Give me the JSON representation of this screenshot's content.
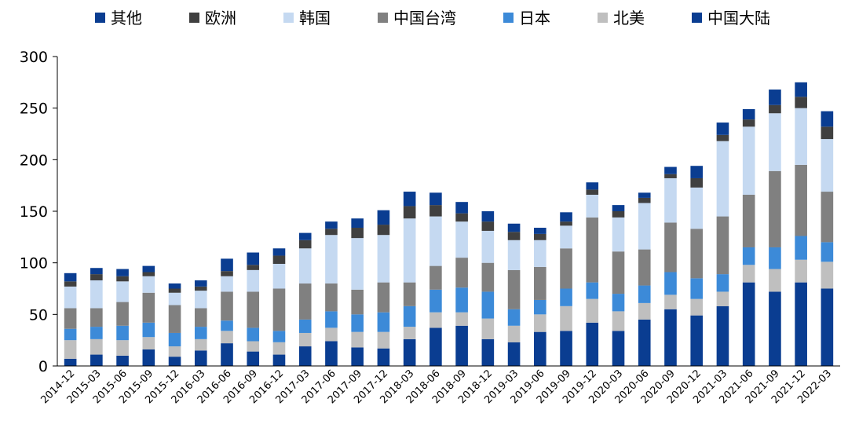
{
  "chart_data": {
    "type": "bar",
    "stacked": true,
    "title": "",
    "xlabel": "",
    "ylabel": "",
    "ylim": [
      0,
      300
    ],
    "yticks": [
      0,
      50,
      100,
      150,
      200,
      250,
      300
    ],
    "grid": false,
    "legend_position": "top",
    "legend_order": [
      "其他",
      "欧洲",
      "韩国",
      "中国台湾",
      "日本",
      "北美",
      "中国大陆"
    ],
    "categories": [
      "2014-12",
      "2015-03",
      "2015-06",
      "2015-09",
      "2015-12",
      "2016-03",
      "2016-06",
      "2016-09",
      "2016-12",
      "2017-03",
      "2017-06",
      "2017-09",
      "2017-12",
      "2018-03",
      "2018-06",
      "2018-09",
      "2018-12",
      "2019-03",
      "2019-06",
      "2019-09",
      "2019-12",
      "2020-03",
      "2020-06",
      "2020-09",
      "2020-12",
      "2021-03",
      "2021-06",
      "2021-09",
      "2021-12",
      "2022-03"
    ],
    "series": [
      {
        "name": "中国大陆",
        "color": "#0a3d91",
        "values": [
          7,
          11,
          10,
          16,
          9,
          15,
          22,
          14,
          11,
          19,
          24,
          18,
          17,
          26,
          37,
          39,
          26,
          23,
          33,
          34,
          42,
          34,
          45,
          55,
          49,
          58,
          81,
          72,
          81,
          75
        ]
      },
      {
        "name": "北美",
        "color": "#bfbfbf",
        "values": [
          18,
          15,
          15,
          12,
          10,
          11,
          12,
          10,
          12,
          13,
          13,
          15,
          16,
          12,
          15,
          13,
          20,
          16,
          17,
          24,
          23,
          19,
          16,
          14,
          16,
          14,
          17,
          22,
          22,
          26
        ]
      },
      {
        "name": "日本",
        "color": "#3c8ad8",
        "values": [
          11,
          12,
          14,
          14,
          13,
          12,
          10,
          13,
          11,
          13,
          16,
          17,
          19,
          20,
          22,
          24,
          26,
          16,
          14,
          17,
          16,
          17,
          17,
          22,
          20,
          17,
          17,
          21,
          23,
          19
        ]
      },
      {
        "name": "中国台湾",
        "color": "#808080",
        "values": [
          20,
          18,
          23,
          29,
          27,
          18,
          28,
          35,
          41,
          35,
          27,
          24,
          29,
          23,
          23,
          29,
          28,
          38,
          32,
          39,
          63,
          41,
          35,
          48,
          48,
          56,
          51,
          74,
          69,
          49
        ]
      },
      {
        "name": "韩国",
        "color": "#c5d9f1",
        "values": [
          21,
          27,
          20,
          16,
          12,
          17,
          15,
          21,
          24,
          34,
          47,
          50,
          46,
          62,
          48,
          35,
          31,
          29,
          26,
          22,
          22,
          33,
          45,
          43,
          40,
          73,
          66,
          56,
          55,
          51
        ]
      },
      {
        "name": "欧洲",
        "color": "#404040",
        "values": [
          5,
          6,
          5,
          4,
          4,
          4,
          5,
          5,
          8,
          8,
          6,
          10,
          10,
          12,
          11,
          8,
          9,
          8,
          6,
          4,
          5,
          6,
          5,
          4,
          9,
          6,
          7,
          8,
          11,
          12
        ]
      },
      {
        "name": "其他",
        "color": "#0a3d91",
        "values": [
          8,
          6,
          7,
          6,
          5,
          6,
          12,
          12,
          7,
          7,
          7,
          9,
          14,
          14,
          12,
          11,
          10,
          8,
          6,
          9,
          7,
          6,
          5,
          7,
          12,
          12,
          10,
          15,
          14,
          15
        ]
      }
    ]
  }
}
